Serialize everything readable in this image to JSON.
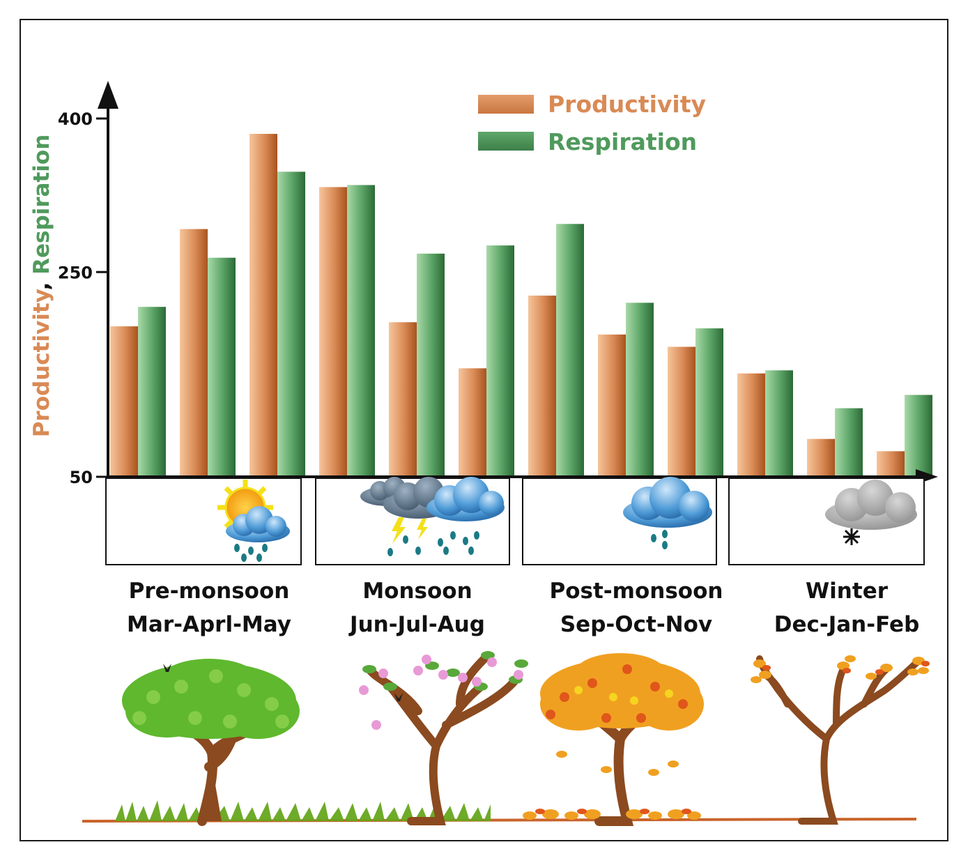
{
  "chart_data": {
    "type": "bar",
    "title": "",
    "xlabel": "",
    "ylabel_parts": [
      "Productivity",
      ", ",
      "Respiration"
    ],
    "yticks": [
      50,
      250,
      400
    ],
    "ylim": [
      50,
      410
    ],
    "categories": [
      "Mar",
      "Apr",
      "May",
      "Jun",
      "Jul",
      "Aug",
      "Sep",
      "Oct",
      "Nov",
      "Dec",
      "Jan",
      "Feb"
    ],
    "series": [
      {
        "name": "Productivity",
        "color": "#d98a55",
        "values": [
          197,
          292,
          385,
          333,
          201,
          156,
          227,
          189,
          177,
          151,
          87,
          75
        ]
      },
      {
        "name": "Respiration",
        "color": "#4f9a5c",
        "values": [
          216,
          264,
          348,
          335,
          268,
          276,
          297,
          220,
          195,
          154,
          117,
          130
        ]
      }
    ],
    "legend": {
      "position": "top-right",
      "entries": [
        "Productivity",
        "Respiration"
      ]
    },
    "grid": false
  },
  "seasons": [
    {
      "name": "Pre-monsoon",
      "months": "Mar-Aprl-May",
      "weather_icon": "sun-rain-cloud-icon",
      "tree_icon": "green-tree-icon"
    },
    {
      "name": "Monsoon",
      "months": "Jun-Jul-Aug",
      "weather_icon": "thunderstorm-cloud-icon",
      "tree_icon": "flowering-tree-icon"
    },
    {
      "name": "Post-monsoon",
      "months": "Sep-Oct-Nov",
      "weather_icon": "rain-cloud-icon",
      "tree_icon": "autumn-tree-icon"
    },
    {
      "name": "Winter",
      "months": "Dec-Jan-Feb",
      "weather_icon": "snow-cloud-icon",
      "tree_icon": "bare-tree-icon"
    }
  ],
  "colors": {
    "productivity": "#d98a55",
    "respiration": "#4f9a5c",
    "axis": "#111111",
    "ground": "#c9642b"
  }
}
